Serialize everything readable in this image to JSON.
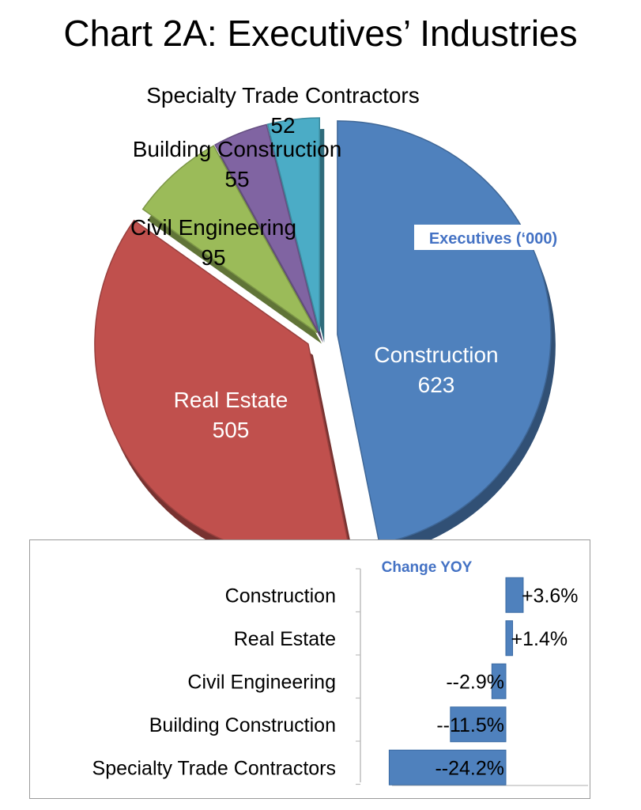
{
  "title": "Chart 2A: Executives’ Industries",
  "colors": {
    "construction": "#4f81bd",
    "real_estate": "#c0504d",
    "civil_engineering": "#9bbb59",
    "building_construction": "#8064a2",
    "specialty_trade": "#4bacc6",
    "bar": "#4f81bd",
    "legend_text": "#4472c4"
  },
  "chart_data": [
    {
      "type": "pie",
      "title": "",
      "legend_label": "Executives (‘000)",
      "legend_position": "right",
      "slices": [
        {
          "label": "Construction",
          "value": 623
        },
        {
          "label": "Real Estate",
          "value": 505
        },
        {
          "label": "Civil Engineering",
          "value": 95
        },
        {
          "label": "Building Construction",
          "value": 55
        },
        {
          "label": "Specialty Trade Contractors",
          "value": 52
        }
      ]
    },
    {
      "type": "bar",
      "orientation": "horizontal",
      "legend_label": "Change YOY",
      "unit": "%",
      "grid": false,
      "categories": [
        "Construction",
        "Real Estate",
        "Civil Engineering",
        "Building Construction",
        "Specialty Trade Contractors"
      ],
      "values": [
        3.6,
        1.4,
        -2.9,
        -11.5,
        -24.2
      ],
      "value_labels": [
        "+3.6%",
        "+1.4%",
        "--2.9%",
        "--11.5%",
        "--24.2%"
      ]
    }
  ]
}
